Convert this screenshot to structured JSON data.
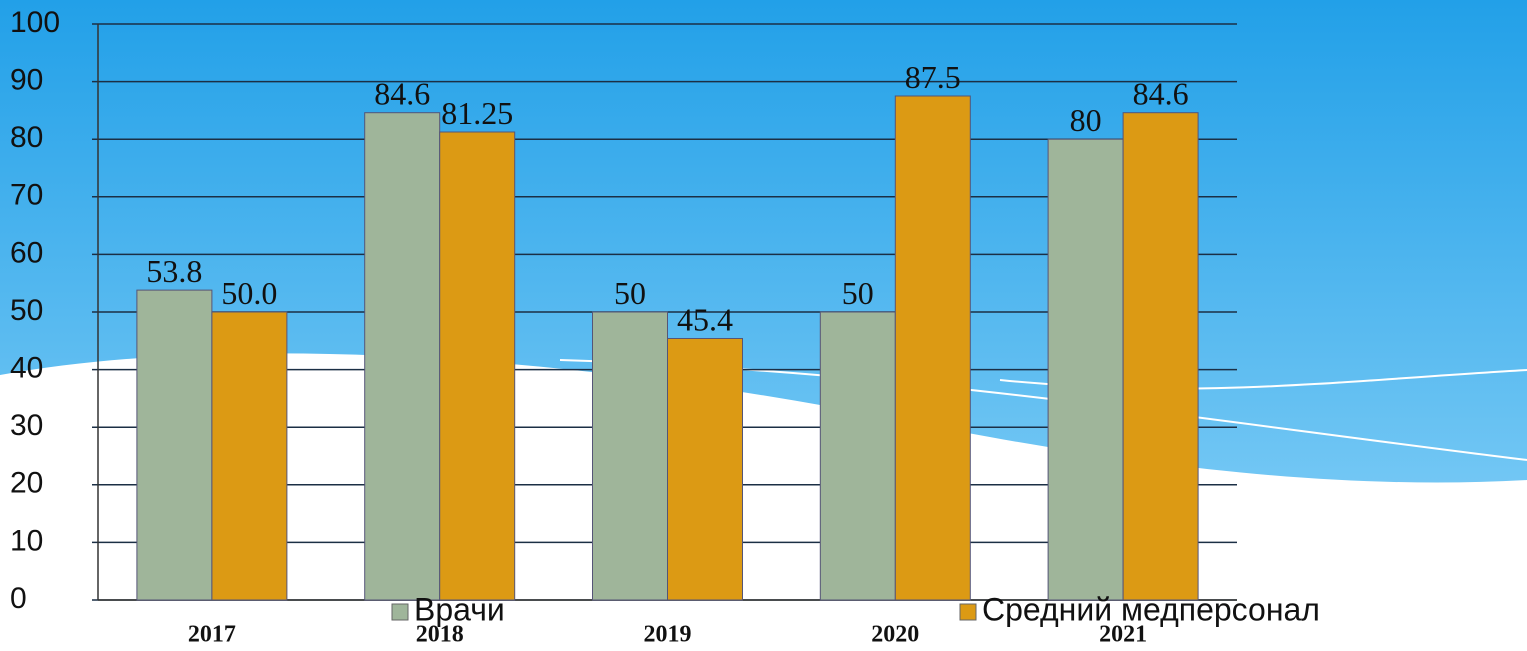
{
  "chart_data": {
    "type": "bar",
    "categories": [
      "2017",
      "2018",
      "2019",
      "2020",
      "2021"
    ],
    "series": [
      {
        "name": "Врачи",
        "color": "#9fb59a",
        "values": [
          53.8,
          84.6,
          50,
          50,
          80
        ]
      },
      {
        "name": "Средний медперсонал",
        "color": "#dc9a14",
        "values": [
          50,
          81.25,
          45.4,
          87.5,
          84.6
        ],
        "value_labels": [
          "50.0",
          "81.25",
          "45.4",
          "87.5",
          "84.6"
        ]
      }
    ],
    "ylim": [
      0,
      100
    ],
    "yticks": [
      0,
      10,
      20,
      30,
      40,
      50,
      60,
      70,
      80,
      90,
      100
    ],
    "grid": true
  }
}
